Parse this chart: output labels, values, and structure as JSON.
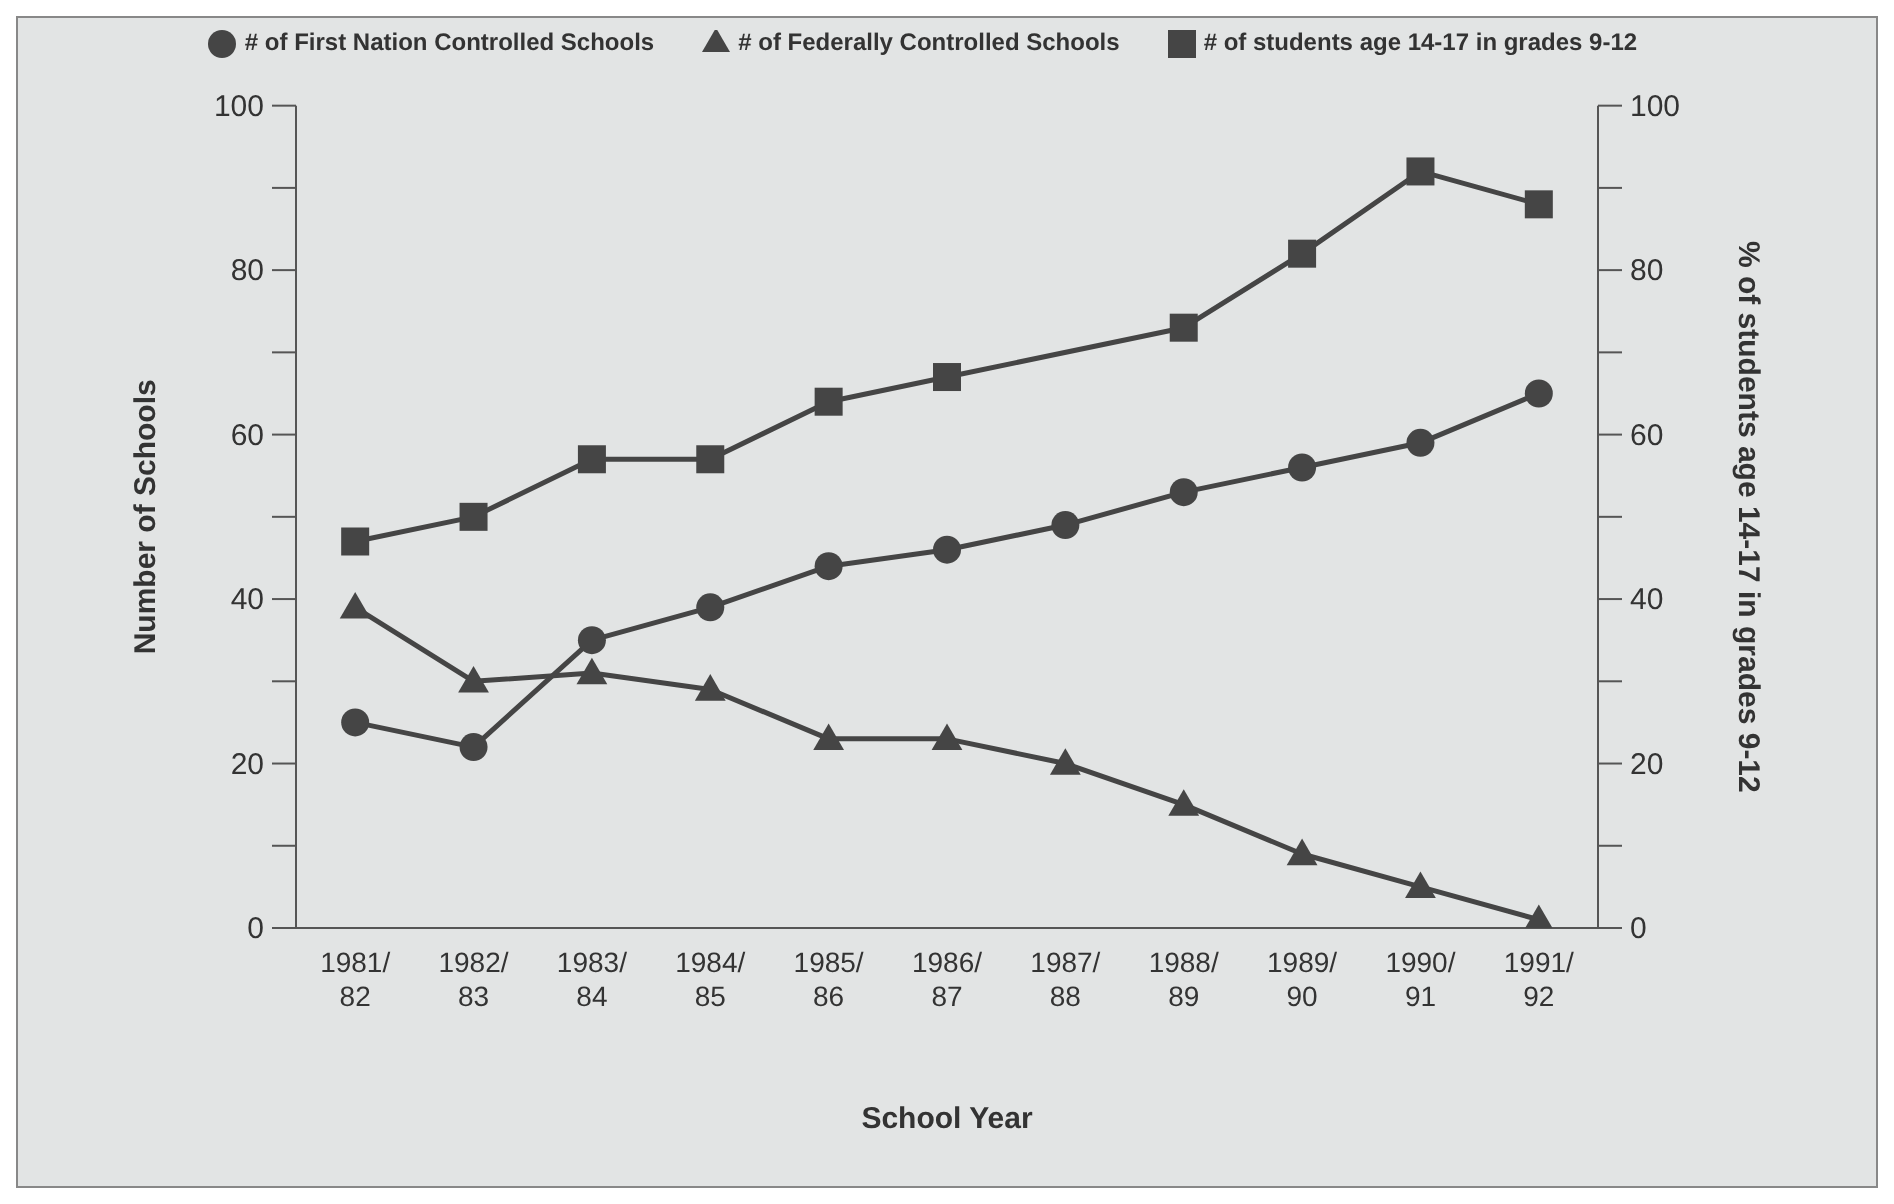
{
  "chart_data": {
    "type": "line",
    "xlabel": "School Year",
    "ylabel": "Number of Schools",
    "y2label": "% of students age 14-17 in grades 9-12",
    "categories": [
      "1981/82",
      "1982/83",
      "1983/84",
      "1984/85",
      "1985/86",
      "1986/87",
      "1987/88",
      "1988/89",
      "1989/90",
      "1990/91",
      "1991/92"
    ],
    "series": [
      {
        "name": "# of First Nation Controlled Schools",
        "color": "#454545",
        "marker": "circle",
        "values": [
          25,
          22,
          35,
          39,
          44,
          46,
          49,
          53,
          56,
          59,
          65
        ]
      },
      {
        "name": "# of Federally Controlled Schools",
        "color": "#454545",
        "marker": "triangle",
        "values": [
          39,
          30,
          31,
          29,
          23,
          23,
          20,
          15,
          9,
          5,
          1
        ]
      },
      {
        "name": "# of students age 14-17 in grades 9-12",
        "color": "#454545",
        "marker": "square",
        "axis": "y2",
        "values": [
          47,
          50,
          57,
          57,
          64,
          67,
          null,
          73,
          82,
          92,
          88
        ]
      }
    ],
    "ylim": [
      0,
      100
    ],
    "yticks": [
      0,
      {
        "value": 10,
        "label": null
      },
      20,
      {
        "value": 30,
        "label": null
      },
      40,
      {
        "value": 50,
        "label": null
      },
      60,
      {
        "value": 70,
        "label": null
      },
      80,
      {
        "value": 90,
        "label": null
      },
      100
    ],
    "y2lim": [
      0,
      100
    ],
    "y2ticks": [
      0,
      {
        "value": 10,
        "label": null
      },
      20,
      {
        "value": 30,
        "label": null
      },
      40,
      {
        "value": 50,
        "label": null
      },
      60,
      {
        "value": 70,
        "label": null
      },
      80,
      {
        "value": 90,
        "label": null
      },
      100
    ],
    "legend": "top",
    "grid": false,
    "line_style": "solid"
  }
}
